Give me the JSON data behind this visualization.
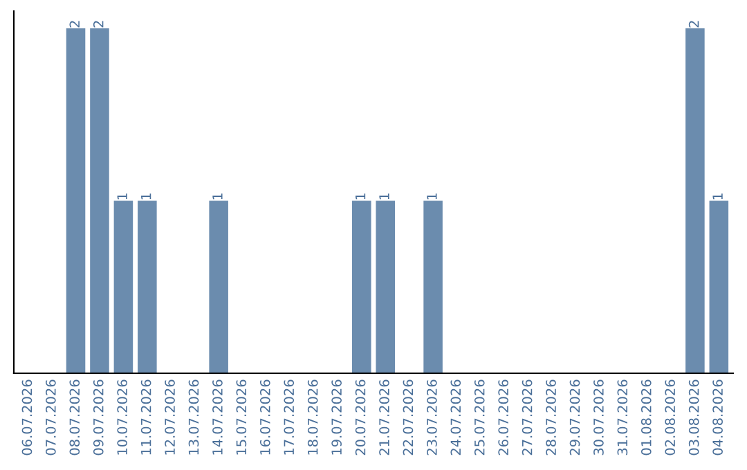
{
  "chart_data": {
    "type": "bar",
    "categories": [
      "06.07.2026",
      "07.07.2026",
      "08.07.2026",
      "09.07.2026",
      "10.07.2026",
      "11.07.2026",
      "12.07.2026",
      "13.07.2026",
      "14.07.2026",
      "15.07.2026",
      "16.07.2026",
      "17.07.2026",
      "18.07.2026",
      "19.07.2026",
      "20.07.2026",
      "21.07.2026",
      "22.07.2026",
      "23.07.2026",
      "24.07.2026",
      "25.07.2026",
      "26.07.2026",
      "27.07.2026",
      "28.07.2026",
      "29.07.2026",
      "30.07.2026",
      "31.07.2026",
      "01.08.2026",
      "02.08.2026",
      "03.08.2026",
      "04.08.2026"
    ],
    "values": [
      0,
      0,
      2,
      2,
      1,
      1,
      0,
      0,
      1,
      0,
      0,
      0,
      0,
      0,
      1,
      1,
      0,
      1,
      0,
      0,
      0,
      0,
      0,
      0,
      0,
      0,
      0,
      0,
      2,
      1
    ],
    "value_labels": [
      null,
      null,
      "2",
      "2",
      "1",
      "1",
      null,
      null,
      "1",
      null,
      null,
      null,
      null,
      null,
      "1",
      "1",
      null,
      "1",
      null,
      null,
      null,
      null,
      null,
      null,
      null,
      null,
      null,
      null,
      "2",
      "1"
    ],
    "color": "#6b8cae",
    "tick_labels": "x",
    "grid": false,
    "legend": false
  }
}
